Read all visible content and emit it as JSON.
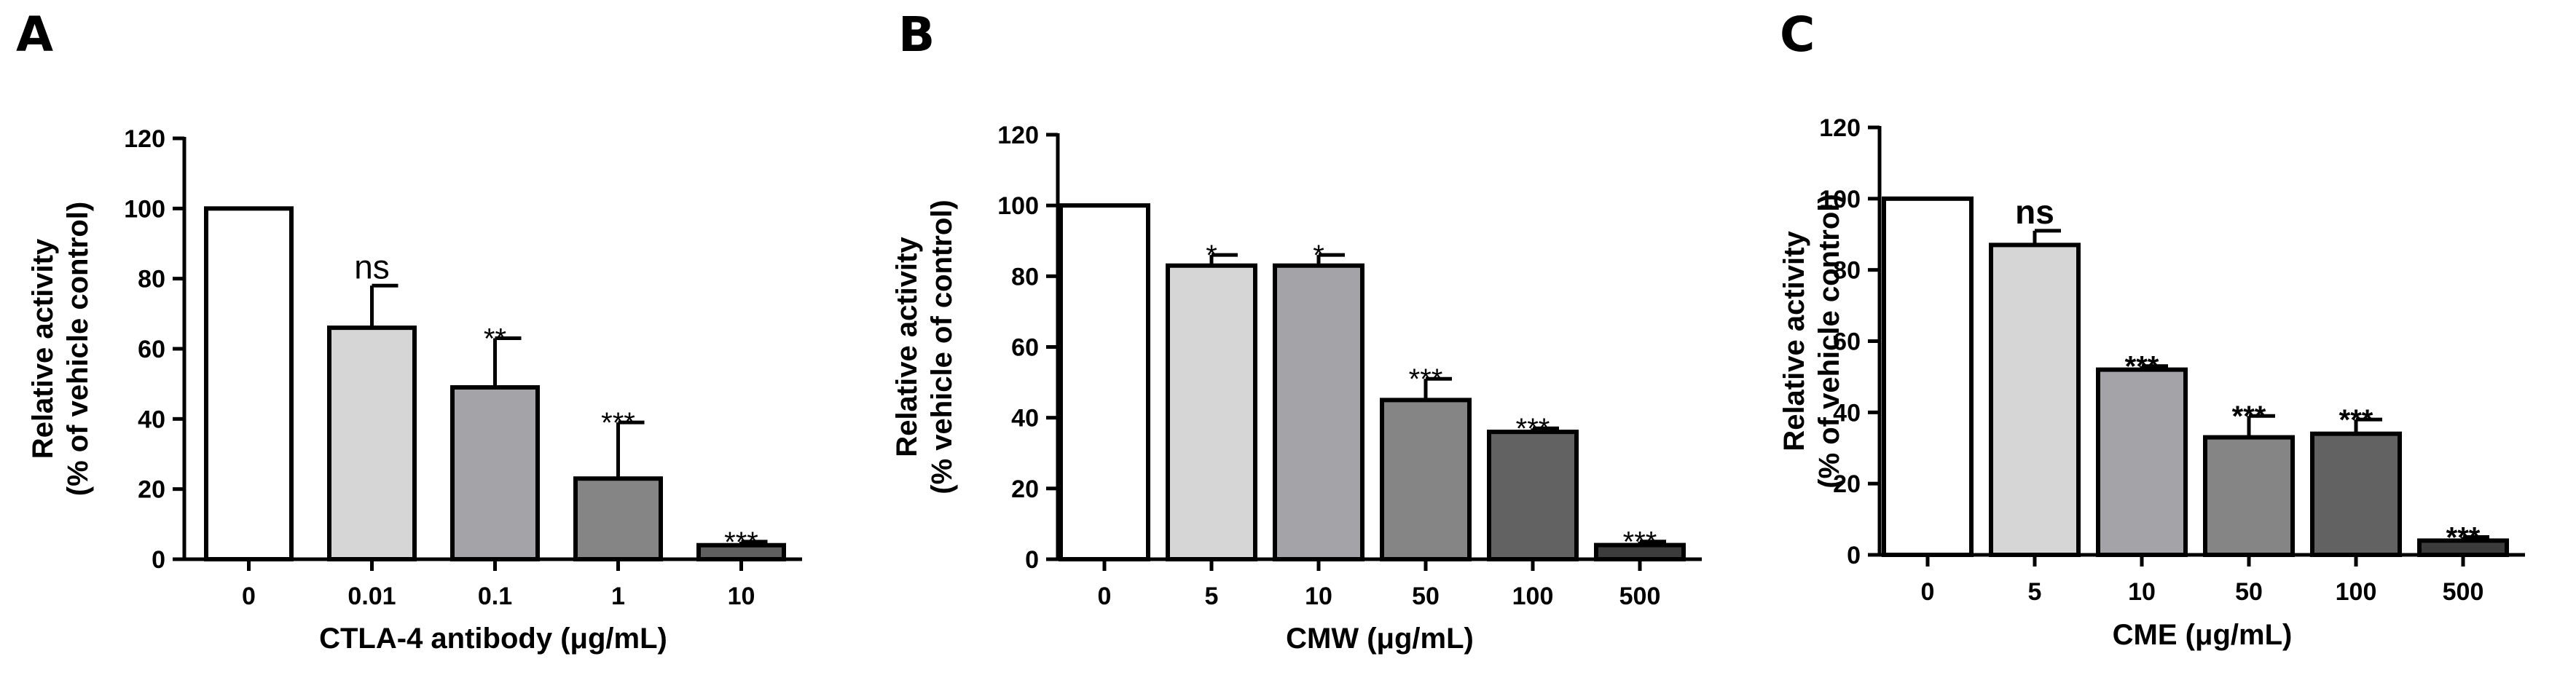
{
  "chart_data": [
    {
      "panel_label": "A",
      "type": "bar",
      "categories": [
        "0",
        "0.01",
        "0.1",
        "1",
        "10"
      ],
      "values": [
        100,
        66,
        49,
        23,
        4
      ],
      "errors": [
        0,
        12,
        14,
        16,
        1
      ],
      "significance": [
        "",
        "ns",
        "**",
        "***",
        "***"
      ],
      "bar_colors": [
        "#ffffff",
        "#d6d6d6",
        "#a3a3a8",
        "#858585",
        "#5f5f5f"
      ],
      "xlabel": "CTLA-4 antibody (μg/mL)",
      "ylabel_line1": "Relative activity",
      "ylabel_line2": "(% of vehicle control)",
      "ylim": [
        0,
        120
      ],
      "yticks": [
        "0",
        "20",
        "40",
        "60",
        "80",
        "100",
        "120"
      ]
    },
    {
      "panel_label": "B",
      "type": "bar",
      "categories": [
        "0",
        "5",
        "10",
        "50",
        "100",
        "500"
      ],
      "values": [
        100,
        83,
        83,
        45,
        36,
        4
      ],
      "errors": [
        0,
        3,
        3,
        6,
        1,
        1
      ],
      "significance": [
        "",
        "*",
        "*",
        "***",
        "***",
        "***"
      ],
      "bar_colors": [
        "#ffffff",
        "#d6d6d6",
        "#a3a3a8",
        "#858585",
        "#626262",
        "#3c3c3c"
      ],
      "xlabel": "CMW (μg/mL)",
      "ylabel_line1": "Relative activity",
      "ylabel_line2": "(% vehicle of control)",
      "ylim": [
        0,
        120
      ],
      "yticks": [
        "0",
        "20",
        "40",
        "60",
        "80",
        "100",
        "120"
      ]
    },
    {
      "panel_label": "C",
      "type": "bar",
      "categories": [
        "0",
        "5",
        "10",
        "50",
        "100",
        "500"
      ],
      "values": [
        100,
        87,
        52,
        33,
        34,
        4
      ],
      "errors": [
        0,
        4,
        1,
        6,
        4,
        1
      ],
      "significance": [
        "",
        "ns",
        "***",
        "***",
        "***",
        "***"
      ],
      "bar_colors": [
        "#ffffff",
        "#d6d6d6",
        "#a3a3a8",
        "#858585",
        "#626262",
        "#3c3c3c"
      ],
      "xlabel": "CME (μg/mL)",
      "ylabel_line1": "Relative activity",
      "ylabel_line2": "(% of vehicle control)",
      "ylim": [
        0,
        120
      ],
      "yticks": [
        "0",
        "20",
        "40",
        "60",
        "80",
        "100",
        "120"
      ]
    }
  ]
}
